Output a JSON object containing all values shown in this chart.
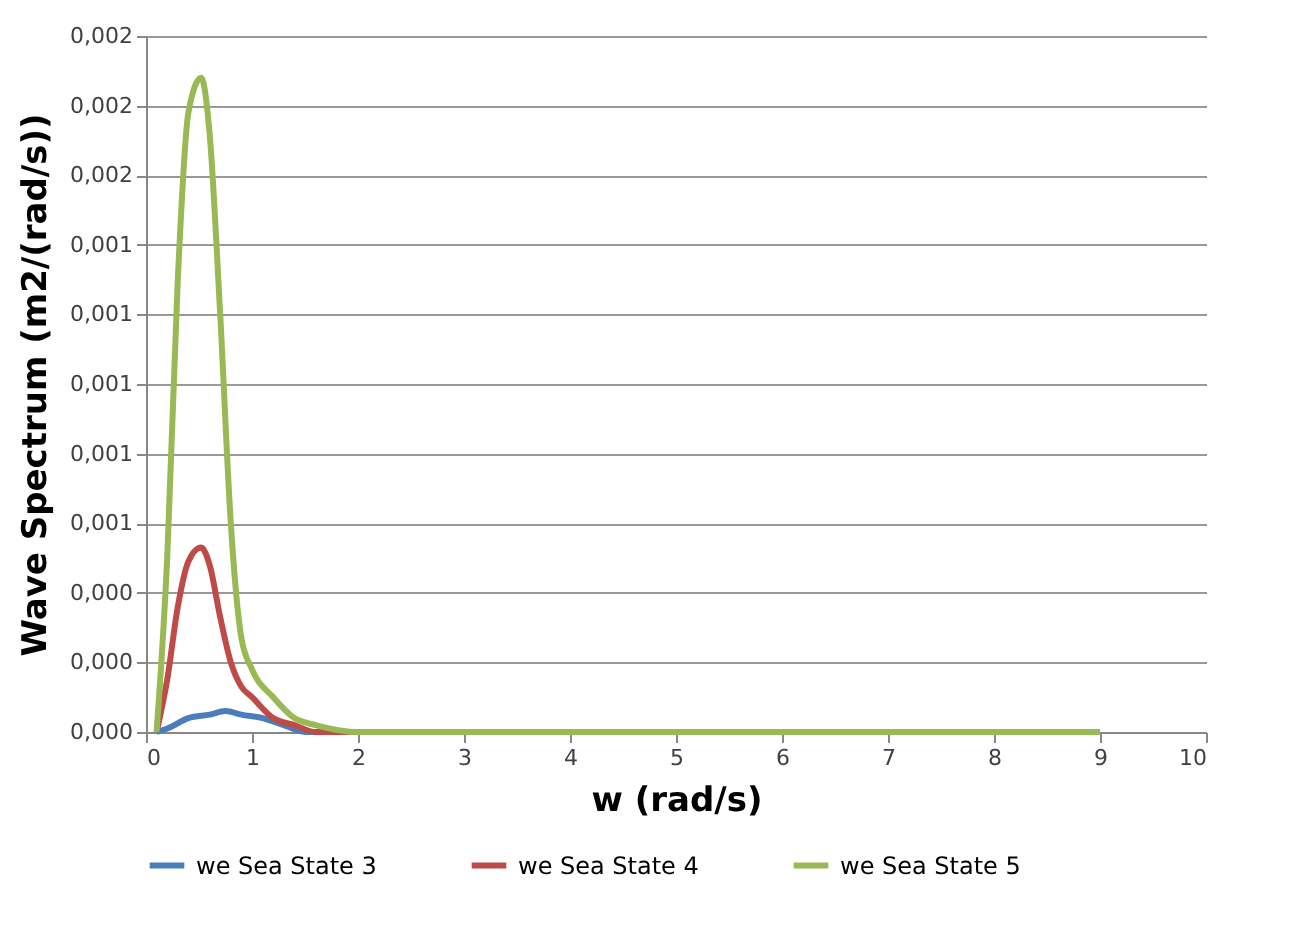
{
  "chart_data": {
    "type": "line",
    "xlabel": "w (rad/s)",
    "ylabel": "Wave Spectrum (m2/(rad/s))",
    "xlim": [
      0,
      10
    ],
    "xticks": [
      0,
      1,
      2,
      3,
      4,
      5,
      6,
      7,
      8,
      9,
      10
    ],
    "ylim": [
      0,
      0.002
    ],
    "yticks": [
      {
        "value": 0,
        "label": "0,000"
      },
      {
        "value": 0.0002,
        "label": "0,000"
      },
      {
        "value": 0.0004,
        "label": "0,000"
      },
      {
        "value": 0.0006,
        "label": "0,001"
      },
      {
        "value": 0.0008,
        "label": "0,001"
      },
      {
        "value": 0.001,
        "label": "0,001"
      },
      {
        "value": 0.0012,
        "label": "0,001"
      },
      {
        "value": 0.0014,
        "label": "0,001"
      },
      {
        "value": 0.0016,
        "label": "0,002"
      },
      {
        "value": 0.0018,
        "label": "0,002"
      },
      {
        "value": 0.002,
        "label": "0,002"
      }
    ],
    "grid": "y",
    "legend": "bottom",
    "marker": "none",
    "line_style": "solid",
    "series": [
      {
        "name": "we Sea State 3",
        "color": "#4a7ebb",
        "x": [
          0.1,
          0.2,
          0.4,
          0.6,
          0.75,
          0.9,
          1.1,
          1.3,
          1.5,
          2,
          3
        ],
        "values": [
          0,
          1e-05,
          4e-05,
          5e-05,
          6e-05,
          5e-05,
          4e-05,
          2e-05,
          0,
          0,
          0
        ]
      },
      {
        "name": "we Sea State 4",
        "color": "#be4b48",
        "x": [
          0.1,
          0.2,
          0.3,
          0.4,
          0.52,
          0.6,
          0.7,
          0.8,
          0.9,
          1.0,
          1.2,
          1.4,
          1.6,
          2,
          3,
          4
        ],
        "values": [
          0,
          0.00015,
          0.00036,
          0.00049,
          0.00053,
          0.00048,
          0.00033,
          0.0002,
          0.00013,
          0.0001,
          4e-05,
          2e-05,
          0,
          0,
          0,
          0
        ]
      },
      {
        "name": "we Sea State 5",
        "color": "#98b954",
        "x": [
          0.1,
          0.2,
          0.3,
          0.4,
          0.52,
          0.6,
          0.7,
          0.8,
          0.9,
          1.0,
          1.2,
          1.4,
          1.6,
          2,
          3,
          4,
          5,
          6,
          7,
          8,
          9
        ],
        "values": [
          0,
          0.0005,
          0.0013,
          0.00178,
          0.00188,
          0.00172,
          0.0012,
          0.0006,
          0.00027,
          0.00018,
          0.0001,
          4e-05,
          2e-05,
          0,
          0,
          0,
          0,
          0,
          0,
          0,
          0
        ]
      }
    ]
  }
}
